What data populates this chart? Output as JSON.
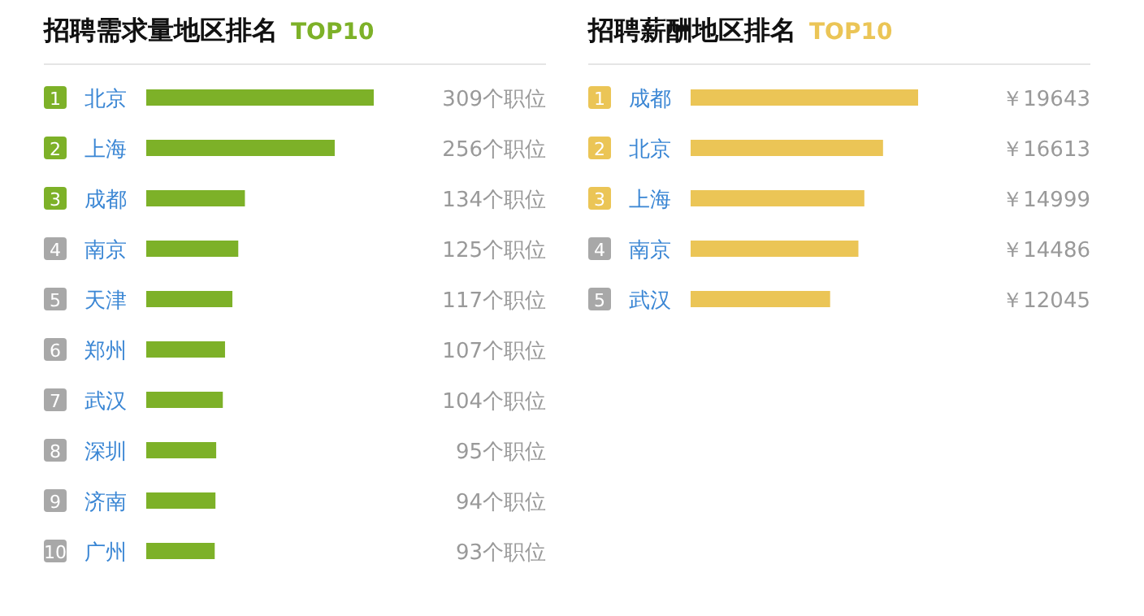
{
  "chart_data": [
    {
      "type": "bar",
      "orientation": "horizontal",
      "title": "招聘需求量地区排名",
      "subtitle": "TOP10",
      "categories": [
        "北京",
        "上海",
        "成都",
        "南京",
        "天津",
        "郑州",
        "武汉",
        "深圳",
        "济南",
        "广州"
      ],
      "series": [
        {
          "color": "#7db128",
          "values": [
            309,
            256,
            134,
            125,
            117,
            107,
            104,
            95,
            94,
            93
          ],
          "value_labels": [
            "309个职位",
            "256个职位",
            "134个职位",
            "125个职位",
            "117个职位",
            "107个职位",
            "104个职位",
            "95个职位",
            "94个职位",
            "93个职位"
          ]
        }
      ],
      "annotations": [
        "1",
        "2",
        "3",
        "4",
        "5",
        "6",
        "7",
        "8",
        "9",
        "10"
      ]
    },
    {
      "type": "bar",
      "orientation": "horizontal",
      "title": "招聘薪酬地区排名",
      "subtitle": "TOP10",
      "categories": [
        "成都",
        "北京",
        "上海",
        "南京",
        "武汉"
      ],
      "series": [
        {
          "color": "#ebc556",
          "values": [
            19643,
            16613,
            14999,
            14486,
            12045
          ],
          "value_labels": [
            "￥19643",
            "￥16613",
            "￥14999",
            "￥14486",
            "￥12045"
          ]
        }
      ],
      "annotations": [
        "1",
        "2",
        "3",
        "4",
        "5"
      ]
    }
  ]
}
